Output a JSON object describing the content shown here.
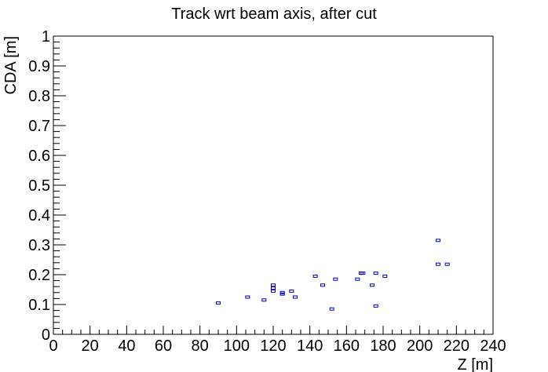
{
  "chart_data": {
    "type": "scatter",
    "title": "Track wrt beam axis, after cut",
    "xlabel": "Z [m]",
    "ylabel": "CDA [m]",
    "xlim": [
      0,
      240
    ],
    "ylim": [
      0,
      1
    ],
    "x_ticks": [
      0,
      20,
      40,
      60,
      80,
      100,
      120,
      140,
      160,
      180,
      200,
      220,
      240
    ],
    "y_ticks": [
      0,
      0.1,
      0.2,
      0.3,
      0.4,
      0.5,
      0.6,
      0.7,
      0.8,
      0.9,
      1
    ],
    "grid": false,
    "marker_color": "#0000cc",
    "points": [
      {
        "x": 90,
        "y": 0.105
      },
      {
        "x": 106,
        "y": 0.125
      },
      {
        "x": 115,
        "y": 0.115
      },
      {
        "x": 120,
        "y": 0.145
      },
      {
        "x": 120,
        "y": 0.155
      },
      {
        "x": 120,
        "y": 0.165
      },
      {
        "x": 125,
        "y": 0.135
      },
      {
        "x": 125,
        "y": 0.14
      },
      {
        "x": 130,
        "y": 0.145
      },
      {
        "x": 132,
        "y": 0.125
      },
      {
        "x": 143,
        "y": 0.195
      },
      {
        "x": 147,
        "y": 0.165
      },
      {
        "x": 152,
        "y": 0.085
      },
      {
        "x": 154,
        "y": 0.185
      },
      {
        "x": 166,
        "y": 0.185
      },
      {
        "x": 168,
        "y": 0.205
      },
      {
        "x": 169,
        "y": 0.205
      },
      {
        "x": 174,
        "y": 0.165
      },
      {
        "x": 176,
        "y": 0.095
      },
      {
        "x": 176,
        "y": 0.205
      },
      {
        "x": 181,
        "y": 0.195
      },
      {
        "x": 210,
        "y": 0.235
      },
      {
        "x": 210,
        "y": 0.315
      },
      {
        "x": 215,
        "y": 0.235
      }
    ]
  }
}
